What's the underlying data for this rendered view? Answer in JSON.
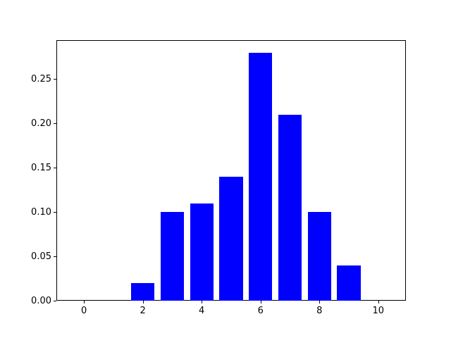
{
  "chart_data": {
    "type": "bar",
    "title": "",
    "xlabel": "",
    "ylabel": "",
    "x": [
      2,
      3,
      4,
      5,
      6,
      7,
      8,
      9
    ],
    "values": [
      0.02,
      0.1,
      0.11,
      0.14,
      0.28,
      0.21,
      0.1,
      0.04
    ],
    "bar_width": 0.8,
    "xlim": [
      -0.94,
      10.94
    ],
    "ylim": [
      0,
      0.294
    ],
    "xticks": [
      0,
      2,
      4,
      6,
      8,
      10
    ],
    "xtick_labels": [
      "0",
      "2",
      "4",
      "6",
      "8",
      "10"
    ],
    "yticks": [
      0.0,
      0.05,
      0.1,
      0.15,
      0.2,
      0.25
    ],
    "ytick_labels": [
      "0.00",
      "0.05",
      "0.10",
      "0.15",
      "0.20",
      "0.25"
    ],
    "grid": false,
    "legend": null,
    "colors": {
      "bar": "#0000ff",
      "spine": "#000000",
      "background": "#ffffff",
      "tick_label": "#000000"
    }
  }
}
